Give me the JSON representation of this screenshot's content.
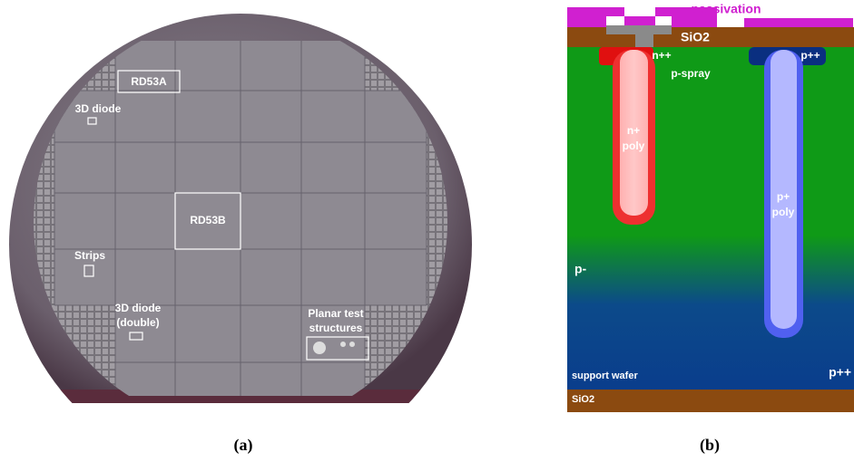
{
  "panel_a": {
    "labels": {
      "rd53a": "RD53A",
      "diode": "3D diode",
      "rd53b": "RD53B",
      "strips": "Strips",
      "diode_double": [
        "3D diode",
        "(double)"
      ],
      "planar": [
        "Planar test",
        "structures"
      ]
    },
    "caption": "(a)"
  },
  "panel_b": {
    "labels": {
      "passivation": "passivation",
      "sio2_top": "SiO2",
      "n_pp": "n++",
      "p_spray": "p-spray",
      "p_pp_top": "p++",
      "n_poly": [
        "n+",
        "poly"
      ],
      "p_poly": [
        "p+",
        "poly"
      ],
      "p_minus": "p-",
      "support": "support wafer",
      "p_pp_bottom": "p++",
      "sio2_bottom": "SiO2"
    },
    "caption": "(b)"
  }
}
